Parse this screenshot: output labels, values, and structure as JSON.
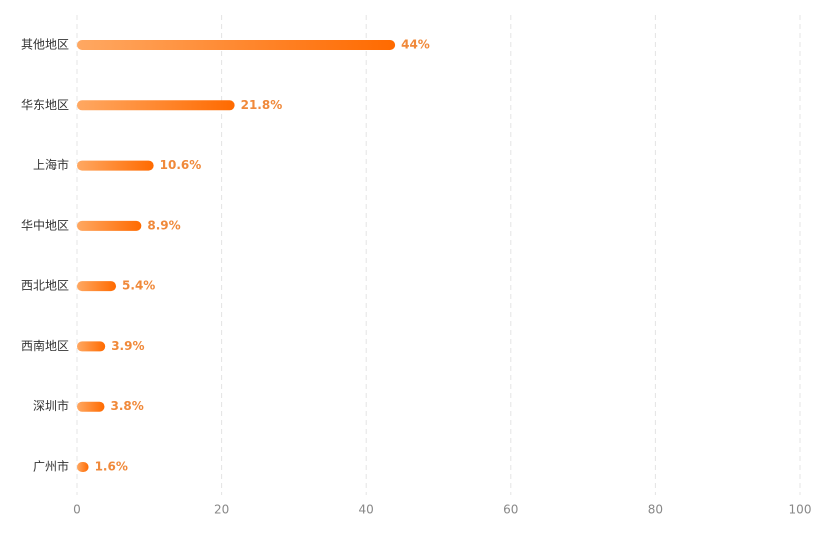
{
  "chart_data": {
    "type": "hbar",
    "categories": [
      "其他地区",
      "华东地区",
      "上海市",
      "华中地区",
      "西北地区",
      "西南地区",
      "深圳市",
      "广州市"
    ],
    "values": [
      44,
      21.8,
      10.6,
      8.9,
      5.4,
      3.9,
      3.8,
      1.6
    ],
    "value_labels": [
      "44%",
      "21.8%",
      "10.6%",
      "8.9%",
      "5.4%",
      "3.9%",
      "3.8%",
      "1.6%"
    ],
    "gradient": [
      "#ffa862",
      "#ff6a00"
    ],
    "label_color": "#f0893a",
    "xlim": [
      0,
      100
    ],
    "xticks": [
      0,
      20,
      40,
      60,
      80,
      100
    ],
    "grid": true
  }
}
